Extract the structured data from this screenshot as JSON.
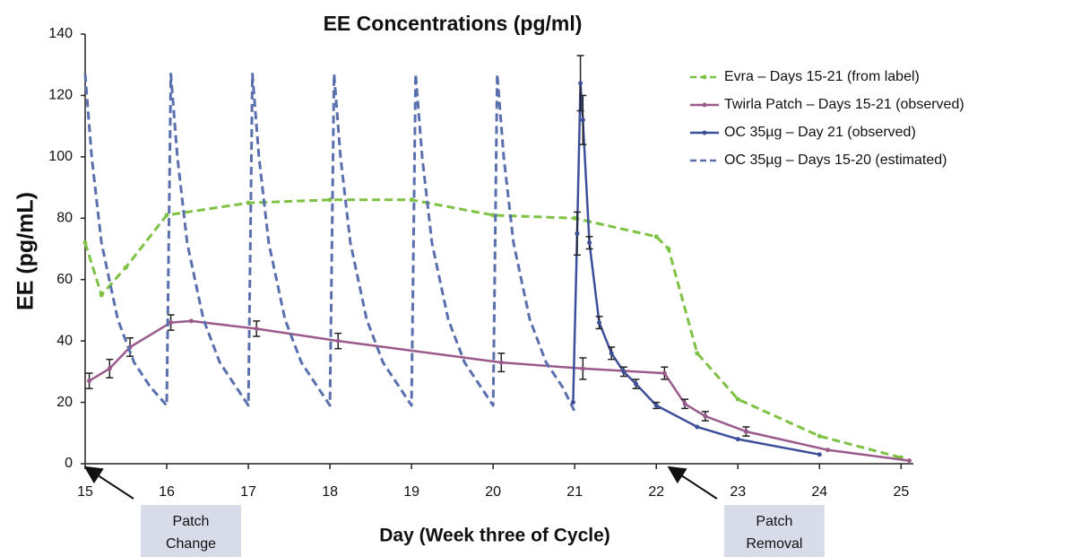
{
  "chart_data": {
    "type": "line",
    "title": "EE Concentrations (pg/ml)",
    "x_label": "Day (Week three of Cycle)",
    "y_label": "EE (pg/mL)",
    "xlim": [
      15,
      25.15
    ],
    "ylim": [
      0,
      140
    ],
    "xticks": [
      15,
      16,
      17,
      18,
      19,
      20,
      21,
      22,
      23,
      24,
      25
    ],
    "yticks": [
      0,
      20,
      40,
      60,
      80,
      100,
      120,
      140
    ],
    "grid": false,
    "legend": "upper right",
    "series": [
      {
        "name": "Evra – Days 15-21 (from label)",
        "color": "#7dc242",
        "style": "dashed",
        "markers": true,
        "x": [
          15,
          15.2,
          15.5,
          16,
          17,
          18,
          19,
          20,
          21,
          22,
          22.15,
          22.5,
          23,
          24,
          25
        ],
        "values": [
          72,
          55,
          64,
          81,
          85,
          86,
          86,
          81,
          80,
          74,
          70,
          36,
          21,
          9,
          2
        ]
      },
      {
        "name": "Twirla Patch – Days 15-21 (observed)",
        "color": "#9b5a8c",
        "style": "solid",
        "markers": true,
        "x": [
          15.05,
          15.3,
          15.55,
          16.05,
          16.3,
          17.1,
          18.1,
          20.1,
          21.1,
          22.1,
          22.35,
          22.6,
          23.1,
          24.1,
          25.1
        ],
        "values": [
          27,
          31,
          38,
          46,
          46.5,
          44,
          40,
          33,
          31,
          29.5,
          19.5,
          15.5,
          10.5,
          4.5,
          1
        ],
        "errors": [
          2.5,
          3,
          3,
          2.5,
          null,
          2.5,
          2.5,
          3,
          3.5,
          2,
          1.5,
          1.5,
          1.5,
          null,
          null
        ]
      },
      {
        "name": "OC 35µg – Day 21 (observed)",
        "color": "#3e4f99",
        "style": "solid",
        "markers": true,
        "x": [
          20.98,
          21.03,
          21.07,
          21.1,
          21.18,
          21.3,
          21.45,
          21.6,
          21.75,
          22,
          22.5,
          23,
          24
        ],
        "values": [
          20,
          75,
          124,
          112,
          72,
          46,
          36,
          30,
          26,
          19,
          12,
          8,
          3
        ],
        "errors": [
          null,
          7,
          9,
          8,
          2,
          2,
          2,
          1.5,
          1.5,
          1,
          null,
          null,
          null
        ]
      },
      {
        "name": "OC 35µg – Days 15-20 (estimated)",
        "color": "#5a6fae",
        "style": "dashed",
        "markers": false,
        "x": [
          15,
          15.08,
          15.2,
          15.4,
          15.6,
          15.8,
          16,
          16.05,
          16.13,
          16.25,
          16.45,
          16.65,
          16.85,
          17,
          17.05,
          17.13,
          17.25,
          17.45,
          17.65,
          17.85,
          18,
          18.05,
          18.13,
          18.25,
          18.45,
          18.65,
          18.85,
          19,
          19.05,
          19.13,
          19.25,
          19.45,
          19.65,
          19.85,
          20,
          20.05,
          20.13,
          20.25,
          20.45,
          20.65,
          20.85,
          21
        ],
        "values": [
          127,
          100,
          72,
          47,
          33,
          25,
          19,
          127,
          100,
          72,
          47,
          33,
          25,
          19,
          127,
          100,
          72,
          47,
          33,
          25,
          19,
          127,
          100,
          72,
          47,
          33,
          25,
          19,
          127,
          100,
          72,
          47,
          33,
          25,
          19,
          127,
          100,
          72,
          47,
          33,
          25,
          17
        ]
      }
    ],
    "annotations": [
      {
        "lines": [
          "Patch",
          "Change"
        ],
        "x": 15
      },
      {
        "lines": [
          "Patch",
          "Removal"
        ],
        "x": 22.15
      }
    ]
  }
}
